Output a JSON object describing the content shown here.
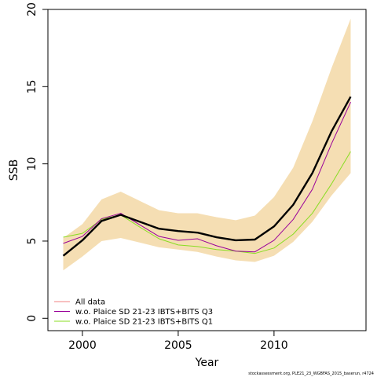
{
  "chart_data": {
    "type": "line",
    "title": "",
    "xlabel": "Year",
    "ylabel": "SSB",
    "xlim": [
      1998.2,
      2014.8
    ],
    "ylim": [
      -0.8,
      20
    ],
    "x_ticks": [
      2000,
      2005,
      2010
    ],
    "y_ticks": [
      0,
      5,
      10,
      15,
      20
    ],
    "grid": false,
    "legend_position": "bottom-left",
    "x": [
      1999,
      2000,
      2001,
      2002,
      2003,
      2004,
      2005,
      2006,
      2007,
      2008,
      2009,
      2010,
      2011,
      2012,
      2013,
      2014
    ],
    "confidence_band": {
      "color": "#f5deb3",
      "lower": [
        3.1,
        4.0,
        5.0,
        5.2,
        4.9,
        4.6,
        4.45,
        4.3,
        4.0,
        3.75,
        3.65,
        4.05,
        4.95,
        6.25,
        7.95,
        9.4
      ],
      "upper": [
        5.2,
        6.1,
        7.7,
        8.2,
        7.6,
        7.0,
        6.8,
        6.8,
        6.55,
        6.35,
        6.65,
        7.85,
        9.75,
        12.75,
        16.2,
        19.4
      ]
    },
    "series": [
      {
        "name": "All data",
        "color": "#000000",
        "legend_color": "#f08080",
        "values": [
          4.05,
          5.05,
          6.3,
          6.7,
          6.25,
          5.8,
          5.65,
          5.55,
          5.25,
          5.05,
          5.1,
          5.95,
          7.35,
          9.4,
          12.1,
          14.35
        ]
      },
      {
        "name": "w.o. Plaice SD 21-23 IBTS+BITS Q3",
        "color": "#990099",
        "legend_color": "#990099",
        "values": [
          4.85,
          5.3,
          6.45,
          6.8,
          6.05,
          5.3,
          5.05,
          5.15,
          4.7,
          4.35,
          4.3,
          5.05,
          6.4,
          8.35,
          11.3,
          14.0
        ]
      },
      {
        "name": "w.o. Plaice SD 21-23 IBTS+BITS Q1",
        "color": "#88dd22",
        "legend_color": "#88dd22",
        "values": [
          5.25,
          5.5,
          6.4,
          6.7,
          5.9,
          5.15,
          4.75,
          4.65,
          4.45,
          4.35,
          4.2,
          4.55,
          5.45,
          6.8,
          8.7,
          10.8
        ]
      }
    ]
  },
  "footer_text": "stockassessment.org, PLE21_23_WGBFAS_2015_baserun, r4724"
}
